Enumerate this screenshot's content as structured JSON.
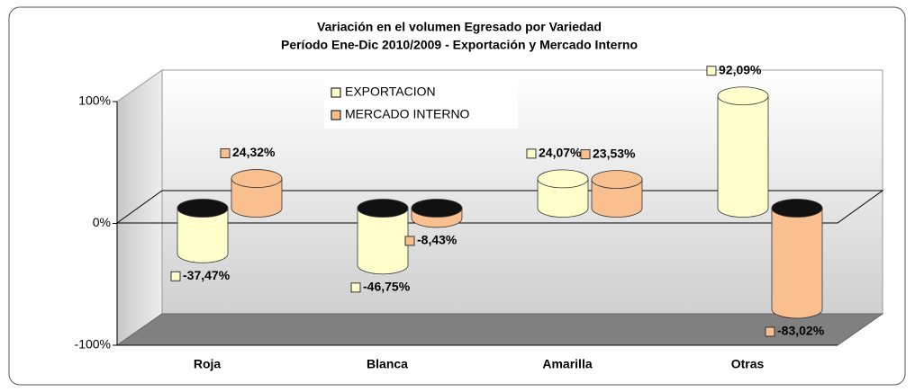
{
  "chart_data": {
    "type": "bar3d",
    "title": "Variación en el volumen Egresado por Variedad",
    "subtitle": "Período Ene-Dic 2010/2009 - Exportación y Mercado Interno",
    "categories": [
      "Roja",
      "Blanca",
      "Amarilla",
      "Otras"
    ],
    "series": [
      {
        "name": "EXPORTACION",
        "color": "#ffffcc",
        "values": [
          -37.47,
          -46.75,
          24.07,
          92.09
        ],
        "value_labels": [
          "-37,47%",
          "-46,75%",
          "24,07%",
          "92,09%"
        ]
      },
      {
        "name": "MERCADO INTERNO",
        "color": "#f9bf8f",
        "values": [
          24.32,
          -8.43,
          23.53,
          -83.02
        ],
        "value_labels": [
          "24,32%",
          "-8,43%",
          "23,53%",
          "-83,02%"
        ]
      }
    ],
    "ylim": [
      -100,
      100
    ],
    "yticks": [
      {
        "value": -100,
        "label": "-100%"
      },
      {
        "value": 0,
        "label": "0%"
      },
      {
        "value": 100,
        "label": "100%"
      }
    ]
  }
}
